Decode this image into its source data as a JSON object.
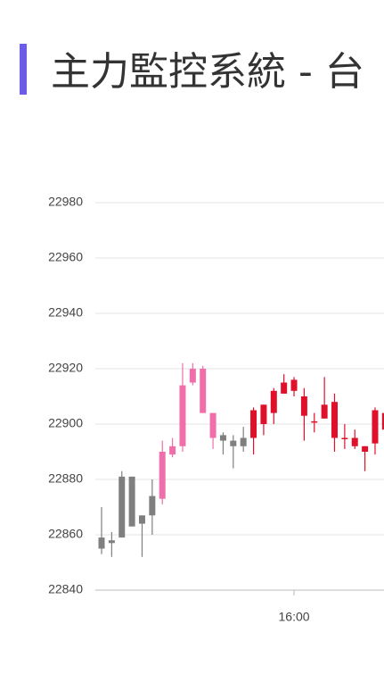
{
  "header": {
    "title": "主力監控系統 - 台"
  },
  "chart_data": {
    "type": "candlestick",
    "categories": [
      null,
      null,
      null,
      null,
      null,
      null,
      null,
      null,
      null,
      null,
      null,
      null,
      null,
      null,
      null,
      null,
      null,
      null,
      null,
      "16:00",
      null,
      null,
      null,
      null,
      null,
      null,
      null,
      null,
      null
    ],
    "open": [
      22859,
      22858,
      22881,
      22881,
      22867,
      22874,
      22890,
      22892,
      22914,
      22920,
      22920,
      22904,
      22896,
      22894,
      22895,
      22905,
      22907,
      22912,
      22915,
      22916,
      22910,
      22901,
      22907,
      22908,
      22895,
      22895,
      22892,
      22905,
      22904
    ],
    "close": [
      22855,
      22857,
      22859,
      22863,
      22864,
      22867,
      22873,
      22889,
      22892,
      22915,
      22904,
      22895,
      22894,
      22892,
      22892,
      22895,
      22900,
      22904,
      22911,
      22912,
      22903,
      22901,
      22902,
      22895,
      22895,
      22892,
      22890,
      22893,
      22898
    ],
    "high": [
      22870,
      22861,
      22883,
      22881,
      22867,
      22880,
      22894,
      22895,
      22922,
      22922,
      22921,
      22904,
      22897,
      22896,
      22899,
      22906,
      22907,
      22913,
      22918,
      22917,
      22913,
      22904,
      22917,
      22911,
      22900,
      22898,
      22892,
      22906,
      22905
    ],
    "low": [
      22853,
      22852,
      22859,
      22863,
      22852,
      22860,
      22871,
      22888,
      22890,
      22914,
      22904,
      22891,
      22889,
      22884,
      22890,
      22889,
      22896,
      22900,
      22911,
      22910,
      22894,
      22897,
      22902,
      22890,
      22891,
      22891,
      22883,
      22889,
      22896
    ],
    "colors": [
      "#7f7f7f",
      "#7f7f7f",
      "#7f7f7f",
      "#7f7f7f",
      "#7f7f7f",
      "#7f7f7f",
      "#f06eaa",
      "#f06eaa",
      "#f06eaa",
      "#f06eaa",
      "#f06eaa",
      "#f06eaa",
      "#7f7f7f",
      "#7f7f7f",
      "#7f7f7f",
      "#e0102a",
      "#e0102a",
      "#e0102a",
      "#e0102a",
      "#e0102a",
      "#e0102a",
      "#e0102a",
      "#e0102a",
      "#e0102a",
      "#e0102a",
      "#e0102a",
      "#e0102a",
      "#e0102a",
      "#e0102a"
    ],
    "ylim": [
      22840,
      22980
    ],
    "yticks": [
      22840,
      22860,
      22880,
      22900,
      22920,
      22940,
      22960,
      22980
    ],
    "grid": true
  }
}
